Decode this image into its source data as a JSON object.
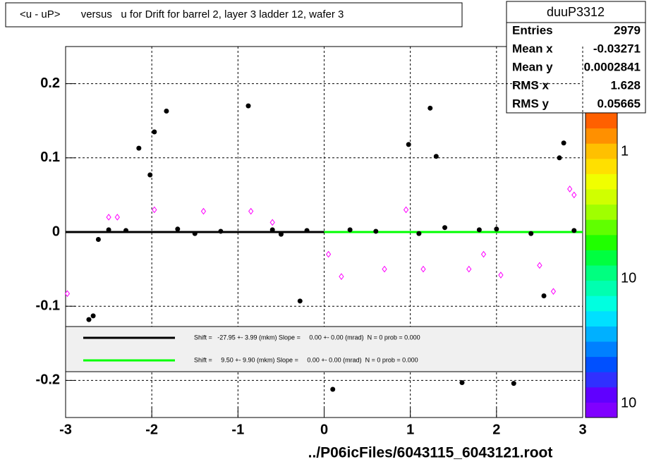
{
  "chart_data": {
    "type": "scatter",
    "title": "<u - uP>       versus   u for Drift for barrel 2, layer 3 ladder 12, wafer 3",
    "xlim": [
      -3,
      3
    ],
    "ylim": [
      -0.25,
      0.25
    ],
    "xticks": [
      -3,
      -2,
      -1,
      0,
      1,
      2,
      3
    ],
    "yticks": [
      -0.2,
      -0.1,
      0,
      0.1,
      0.2
    ],
    "grid": true,
    "series": [
      {
        "color": "#000000",
        "marker": "circle",
        "x": [
          -2.73,
          -2.68,
          -2.62,
          -2.5,
          -2.3,
          -2.15,
          -2.02,
          -1.97,
          -1.83,
          -1.7,
          -1.5,
          -1.2,
          -0.88,
          -0.6,
          -0.5,
          -0.28,
          -0.2,
          0.1,
          0.3,
          0.6,
          0.98,
          1.1,
          1.23,
          1.3,
          1.4,
          1.6,
          1.8,
          2.0,
          2.2,
          2.4,
          2.55,
          2.73,
          2.78,
          2.9
        ],
        "y": [
          -0.118,
          -0.113,
          -0.01,
          0.003,
          0.002,
          0.113,
          0.077,
          0.135,
          0.163,
          0.004,
          -0.002,
          0.001,
          0.17,
          0.003,
          -0.003,
          -0.093,
          0.002,
          -0.212,
          0.003,
          0.001,
          0.118,
          -0.002,
          0.167,
          0.102,
          0.006,
          -0.203,
          0.003,
          0.004,
          -0.204,
          -0.002,
          -0.086,
          0.1,
          0.12,
          0.002
        ]
      },
      {
        "color": "#ff00ff",
        "marker": "diamond",
        "x": [
          -2.98,
          -2.5,
          -2.4,
          -1.97,
          -1.4,
          -0.85,
          -0.6,
          0.05,
          0.2,
          0.7,
          0.95,
          1.15,
          1.68,
          1.85,
          2.05,
          2.5,
          2.66,
          2.85,
          2.9
        ],
        "y": [
          -0.083,
          0.02,
          0.02,
          0.03,
          0.028,
          0.028,
          0.013,
          -0.03,
          -0.06,
          -0.05,
          0.03,
          -0.05,
          -0.05,
          -0.03,
          -0.058,
          -0.045,
          -0.08,
          0.058,
          0.05
        ]
      }
    ],
    "fits": [
      {
        "color": "#000000",
        "x": [
          -3,
          0
        ],
        "y": [
          0,
          0
        ],
        "label": "Shift =   -27.95 +- 3.99 (mkm) Slope =     0.00 +- 0.00 (mrad)  N = 0 prob = 0.000"
      },
      {
        "color": "#00ff00",
        "x": [
          0,
          3
        ],
        "y": [
          0,
          0
        ],
        "label": "Shift =     9.50 +- 9.90 (mkm) Slope =     0.00 +- 0.00 (mrad)  N = 0 prob = 0.000"
      }
    ],
    "stats": {
      "title": "duuP3312",
      "rows": [
        [
          "Entries",
          2979
        ],
        [
          "Mean x",
          -0.03271
        ],
        [
          "Mean y",
          0.0002841
        ],
        [
          "RMS x",
          1.628
        ],
        [
          "RMS y",
          0.05665
        ]
      ]
    },
    "colorbar": {
      "labels": [
        "1",
        "10",
        "10"
      ]
    },
    "footer": "../P06icFiles/6043115_6043121.root"
  }
}
